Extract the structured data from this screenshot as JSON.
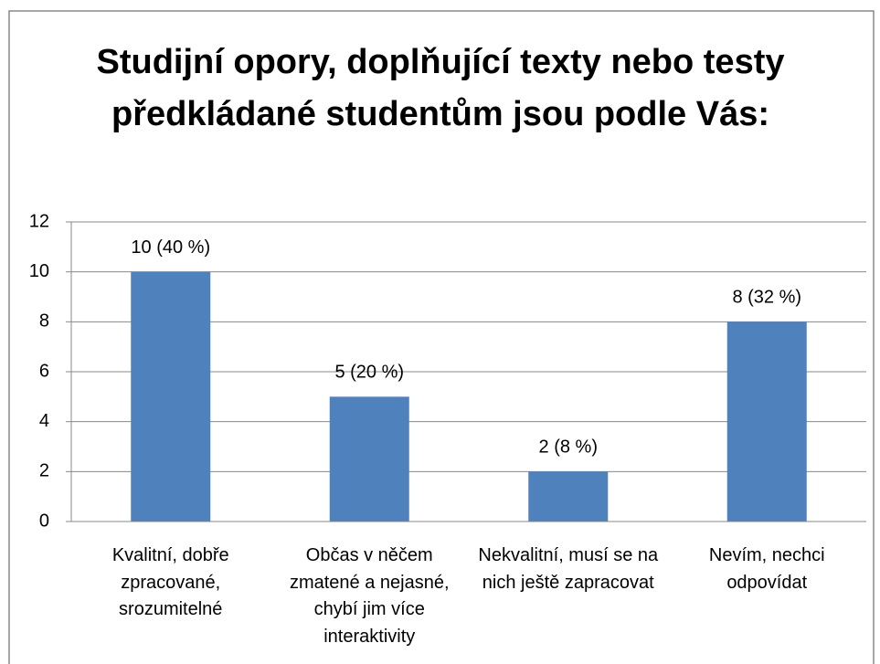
{
  "chart_data": {
    "type": "bar",
    "title": "Studijní opory, doplňující texty nebo testy předkládané studentům jsou podle Vás:",
    "categories": [
      "Kvalitní, dobře zpracované, srozumitelné",
      "Občas v něčem zmatené a nejasné, chybí jim více interaktivity",
      "Nekvalitní, musí se na nich ještě zapracovat",
      "Nevím, nechci odpovídat"
    ],
    "values": [
      10,
      5,
      2,
      8
    ],
    "value_labels": [
      "10 (40 %)",
      "5 (20 %)",
      "2 (8 %)",
      "8 (32 %)"
    ],
    "color": "#4f81bd",
    "ylim": [
      0,
      12
    ],
    "yticks": [
      0,
      2,
      4,
      6,
      8,
      10,
      12
    ],
    "grid": true
  }
}
